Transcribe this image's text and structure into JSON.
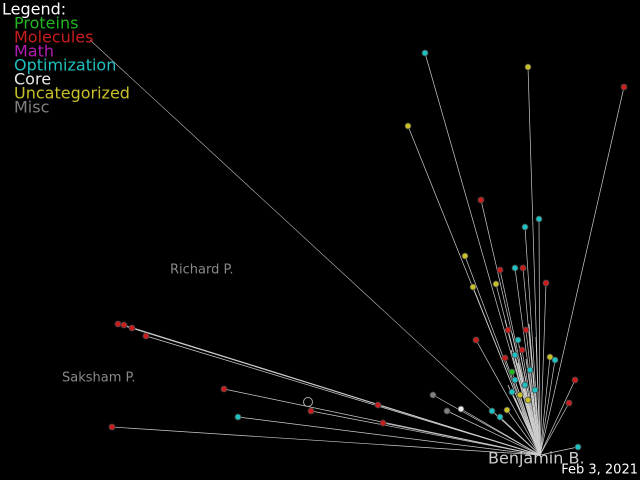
{
  "legend": {
    "title": "Legend:",
    "items": [
      {
        "label": "Proteins",
        "color": "#22b822"
      },
      {
        "label": "Molecules",
        "color": "#c81e1e"
      },
      {
        "label": "Math",
        "color": "#b01eb0"
      },
      {
        "label": "Optimization",
        "color": "#1ec0c0"
      },
      {
        "label": "Core",
        "color": "#e8e8e8"
      },
      {
        "label": "Uncategorized",
        "color": "#c8c028"
      },
      {
        "label": "Misc",
        "color": "#808080"
      }
    ]
  },
  "users": [
    "Richard P.",
    "Saksham P.",
    "Benjamin B."
  ],
  "date": "Feb 3, 2021"
}
